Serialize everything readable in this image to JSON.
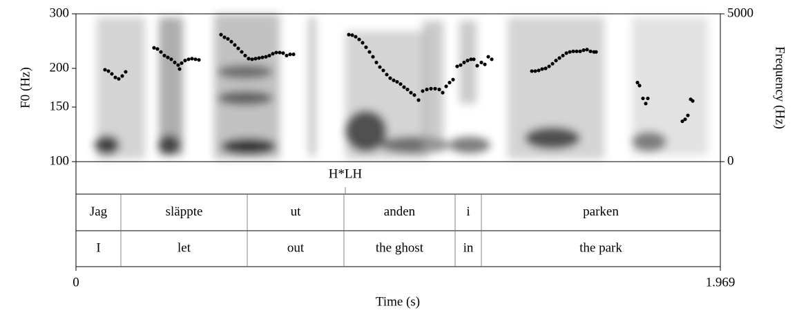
{
  "chart_data": {
    "type": "scatter",
    "xlabel": "Time (s)",
    "ylabel": "F0 (Hz)",
    "y2label": "Frequency (Hz)",
    "xlim": [
      0,
      1.969
    ],
    "xticks": [
      0,
      1.969
    ],
    "ylim": [
      100,
      300
    ],
    "yticks": [
      100,
      150,
      200,
      300
    ],
    "log_y": true,
    "y2lim": [
      0,
      5000
    ],
    "y2ticks": [
      0,
      5000
    ],
    "series": [
      {
        "color": "#000000",
        "x": [
          0.0886,
          0.0992,
          0.1097,
          0.1203,
          0.1308,
          0.1414,
          0.1519,
          0.2385,
          0.249,
          0.2596,
          0.2701,
          0.2807,
          0.2912,
          0.3018,
          0.3123,
          0.3166,
          0.3229,
          0.3334,
          0.344,
          0.3545,
          0.3651,
          0.3757,
          0.4432,
          0.4538,
          0.4643,
          0.4748,
          0.4854,
          0.4959,
          0.5065,
          0.517,
          0.5276,
          0.5382,
          0.5487,
          0.5593,
          0.5698,
          0.5804,
          0.5909,
          0.6015,
          0.612,
          0.6226,
          0.6331,
          0.6437,
          0.6542,
          0.6648,
          0.8336,
          0.8442,
          0.8547,
          0.8653,
          0.8758,
          0.8864,
          0.8969,
          0.9075,
          0.918,
          0.9286,
          0.9391,
          0.9497,
          0.9602,
          0.9708,
          0.9813,
          0.9919,
          1.0024,
          1.013,
          1.0235,
          1.0341,
          1.0468,
          1.0594,
          1.0721,
          1.0847,
          1.0974,
          1.1101,
          1.1206,
          1.1312,
          1.1417,
          1.1523,
          1.1649,
          1.1755,
          1.186,
          1.1966,
          1.2071,
          1.2156,
          1.2261,
          1.2388,
          1.2494,
          1.2599,
          1.2705,
          1.3929,
          1.4034,
          1.414,
          1.4245,
          1.4351,
          1.4456,
          1.4562,
          1.4668,
          1.4773,
          1.4879,
          1.4984,
          1.509,
          1.5195,
          1.5301,
          1.5406,
          1.5512,
          1.5617,
          1.5723,
          1.5828,
          1.5892,
          1.7158,
          1.7221,
          1.7326,
          1.7411,
          1.7474,
          1.8529,
          1.8614,
          1.8698,
          1.8783,
          1.8846
        ],
        "values": [
          198,
          196,
          192,
          187,
          185,
          189,
          195,
          233,
          231,
          226,
          220,
          217,
          214,
          209,
          205,
          199,
          208,
          212,
          214,
          215,
          214,
          213,
          257,
          252,
          249,
          244,
          238,
          232,
          226,
          220,
          215,
          214,
          215,
          216,
          217,
          218,
          220,
          223,
          225,
          225,
          224,
          220,
          222,
          222,
          257,
          256,
          253,
          248,
          242,
          234,
          226,
          218,
          209,
          202,
          197,
          191,
          186,
          183,
          181,
          178,
          174,
          171,
          167,
          164,
          158,
          169,
          171,
          172,
          172,
          171,
          167,
          175,
          180,
          184,
          203,
          205,
          209,
          212,
          214,
          214,
          204,
          209,
          206,
          218,
          214,
          196,
          196,
          197,
          199,
          200,
          203,
          207,
          212,
          216,
          220,
          224,
          226,
          227,
          227,
          227,
          229,
          230,
          227,
          226,
          226,
          180,
          176,
          160,
          154,
          160,
          135,
          137,
          141,
          159,
          157
        ]
      }
    ],
    "tiers": [
      {
        "times": [
          0.8231
        ],
        "labels": [
          "H*LH"
        ]
      },
      {
        "boundaries": [
          0,
          0.1372,
          0.5234,
          0.8188,
          1.1586,
          1.2388,
          1.969
        ],
        "labels": [
          "Jag",
          "släppte",
          "ut",
          "anden",
          "i",
          "parken"
        ]
      },
      {
        "boundaries": [
          0,
          0.1372,
          0.5234,
          0.8188,
          1.1586,
          1.2388,
          1.969
        ],
        "labels": [
          "I",
          "let",
          "out",
          "the ghost",
          "in",
          "the park"
        ]
      }
    ]
  }
}
